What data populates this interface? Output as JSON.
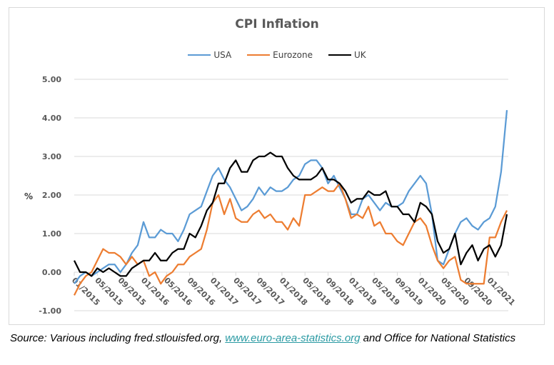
{
  "chart_data": {
    "type": "line",
    "title": "CPI Inflation",
    "xlabel": "",
    "ylabel": "%",
    "ylim": [
      -1,
      5
    ],
    "yticks": [
      "5.00",
      "4.00",
      "3.00",
      "2.00",
      "1.00",
      "0.00",
      "-1.00"
    ],
    "ytick_values": [
      5,
      4,
      3,
      2,
      1,
      0,
      -1
    ],
    "grid": true,
    "legend_position": "top",
    "x_start": "01/2015",
    "x_end": "04/2021",
    "xtick_labels": [
      "01/2015",
      "05/2015",
      "09/2015",
      "01/2016",
      "05/2016",
      "09/2016",
      "01/2017",
      "05/2017",
      "09/2017",
      "01/2018",
      "05/2018",
      "09/2018",
      "01/2019",
      "05/2019",
      "09/2019",
      "01/2020",
      "05/2020",
      "09/2020",
      "01/2021"
    ],
    "xtick_every_months": 4,
    "series": [
      {
        "name": "USA",
        "color": "#5b9bd5",
        "values": [
          -0.3,
          -0.1,
          0.0,
          -0.1,
          0.0,
          0.1,
          0.2,
          0.2,
          0.0,
          0.2,
          0.5,
          0.7,
          1.3,
          0.9,
          0.9,
          1.1,
          1.0,
          1.0,
          0.8,
          1.1,
          1.5,
          1.6,
          1.7,
          2.1,
          2.5,
          2.7,
          2.4,
          2.2,
          1.9,
          1.6,
          1.7,
          1.9,
          2.2,
          2.0,
          2.2,
          2.1,
          2.1,
          2.2,
          2.4,
          2.5,
          2.8,
          2.9,
          2.9,
          2.7,
          2.3,
          2.5,
          2.2,
          1.9,
          1.5,
          1.5,
          1.9,
          2.0,
          1.8,
          1.6,
          1.8,
          1.7,
          1.7,
          1.8,
          2.1,
          2.3,
          2.5,
          2.3,
          1.5,
          0.3,
          0.2,
          0.6,
          1.0,
          1.3,
          1.4,
          1.2,
          1.1,
          1.3,
          1.4,
          1.7,
          2.6,
          4.2
        ]
      },
      {
        "name": "Eurozone",
        "color": "#ed7d31",
        "values": [
          -0.6,
          -0.3,
          -0.1,
          0.0,
          0.3,
          0.6,
          0.5,
          0.5,
          0.4,
          0.2,
          0.4,
          0.2,
          0.3,
          -0.1,
          0.0,
          -0.3,
          -0.1,
          0.0,
          0.2,
          0.2,
          0.4,
          0.5,
          0.6,
          1.1,
          1.8,
          2.0,
          1.5,
          1.9,
          1.4,
          1.3,
          1.3,
          1.5,
          1.6,
          1.4,
          1.5,
          1.3,
          1.3,
          1.1,
          1.4,
          1.2,
          2.0,
          2.0,
          2.1,
          2.2,
          2.1,
          2.1,
          2.3,
          1.9,
          1.4,
          1.5,
          1.4,
          1.7,
          1.2,
          1.3,
          1.0,
          1.0,
          0.8,
          0.7,
          1.0,
          1.3,
          1.4,
          1.2,
          0.7,
          0.3,
          0.1,
          0.3,
          0.4,
          -0.2,
          -0.3,
          -0.3,
          -0.3,
          -0.3,
          0.9,
          0.9,
          1.3,
          1.6
        ]
      },
      {
        "name": "UK",
        "color": "#000000",
        "values": [
          0.3,
          0.0,
          0.0,
          -0.1,
          0.1,
          0.0,
          0.1,
          0.0,
          -0.1,
          -0.1,
          0.1,
          0.2,
          0.3,
          0.3,
          0.5,
          0.3,
          0.3,
          0.5,
          0.6,
          0.6,
          1.0,
          0.9,
          1.2,
          1.6,
          1.8,
          2.3,
          2.3,
          2.7,
          2.9,
          2.6,
          2.6,
          2.9,
          3.0,
          3.0,
          3.1,
          3.0,
          3.0,
          2.7,
          2.5,
          2.4,
          2.4,
          2.4,
          2.5,
          2.7,
          2.4,
          2.4,
          2.3,
          2.1,
          1.8,
          1.9,
          1.9,
          2.1,
          2.0,
          2.0,
          2.1,
          1.7,
          1.7,
          1.5,
          1.5,
          1.3,
          1.8,
          1.7,
          1.5,
          0.8,
          0.5,
          0.6,
          1.0,
          0.2,
          0.5,
          0.7,
          0.3,
          0.6,
          0.7,
          0.4,
          0.7,
          1.5
        ]
      }
    ]
  },
  "footer": {
    "source_prefix": "Source: Various including fred.stlouisfed.org, ",
    "source_link": "www.euro-area-statistics.org",
    "source_suffix": " and Office for National Statistics"
  }
}
